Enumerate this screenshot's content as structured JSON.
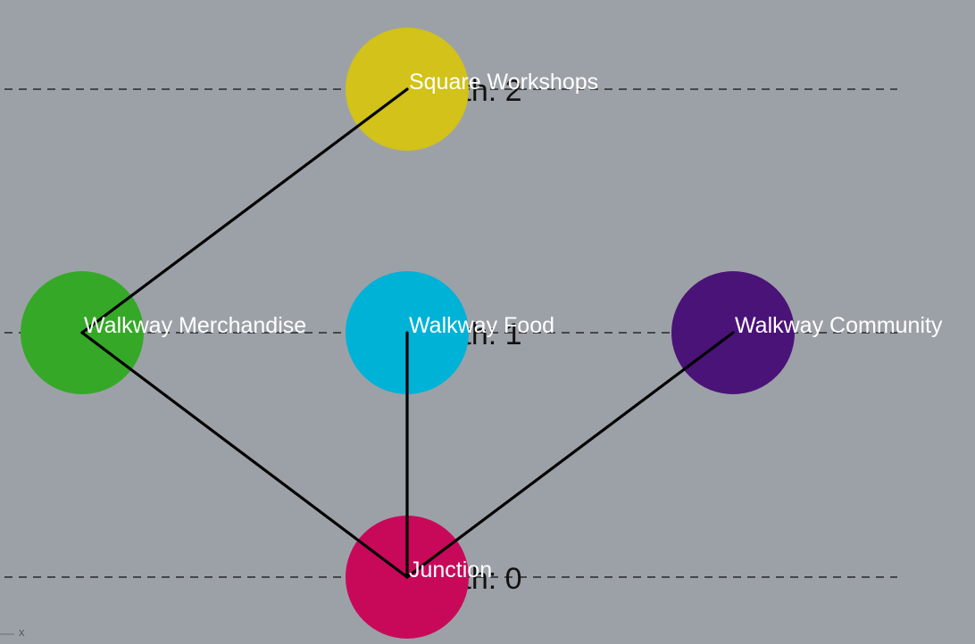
{
  "levels": [
    {
      "depth": 0,
      "label": "Depth: 0"
    },
    {
      "depth": 1,
      "label": "Depth: 1"
    },
    {
      "depth": 2,
      "label": "Depth: 2"
    }
  ],
  "nodes": [
    {
      "id": "junction",
      "label": "Junction",
      "depth": 0,
      "color": "#c8095a"
    },
    {
      "id": "walkway-merchandise",
      "label": "Walkway Merchandise",
      "depth": 1,
      "color": "#36a828"
    },
    {
      "id": "walkway-food",
      "label": "Walkway Food",
      "depth": 1,
      "color": "#00b2d6"
    },
    {
      "id": "walkway-community",
      "label": "Walkway Community",
      "depth": 1,
      "color": "#4a1378"
    },
    {
      "id": "square-workshops",
      "label": "Square Workshops",
      "depth": 2,
      "color": "#d2c219"
    }
  ],
  "edges": [
    {
      "from": "junction",
      "to": "walkway-merchandise"
    },
    {
      "from": "junction",
      "to": "walkway-food"
    },
    {
      "from": "junction",
      "to": "walkway-community"
    },
    {
      "from": "walkway-merchandise",
      "to": "square-workshops"
    }
  ],
  "corner_mark": "x"
}
